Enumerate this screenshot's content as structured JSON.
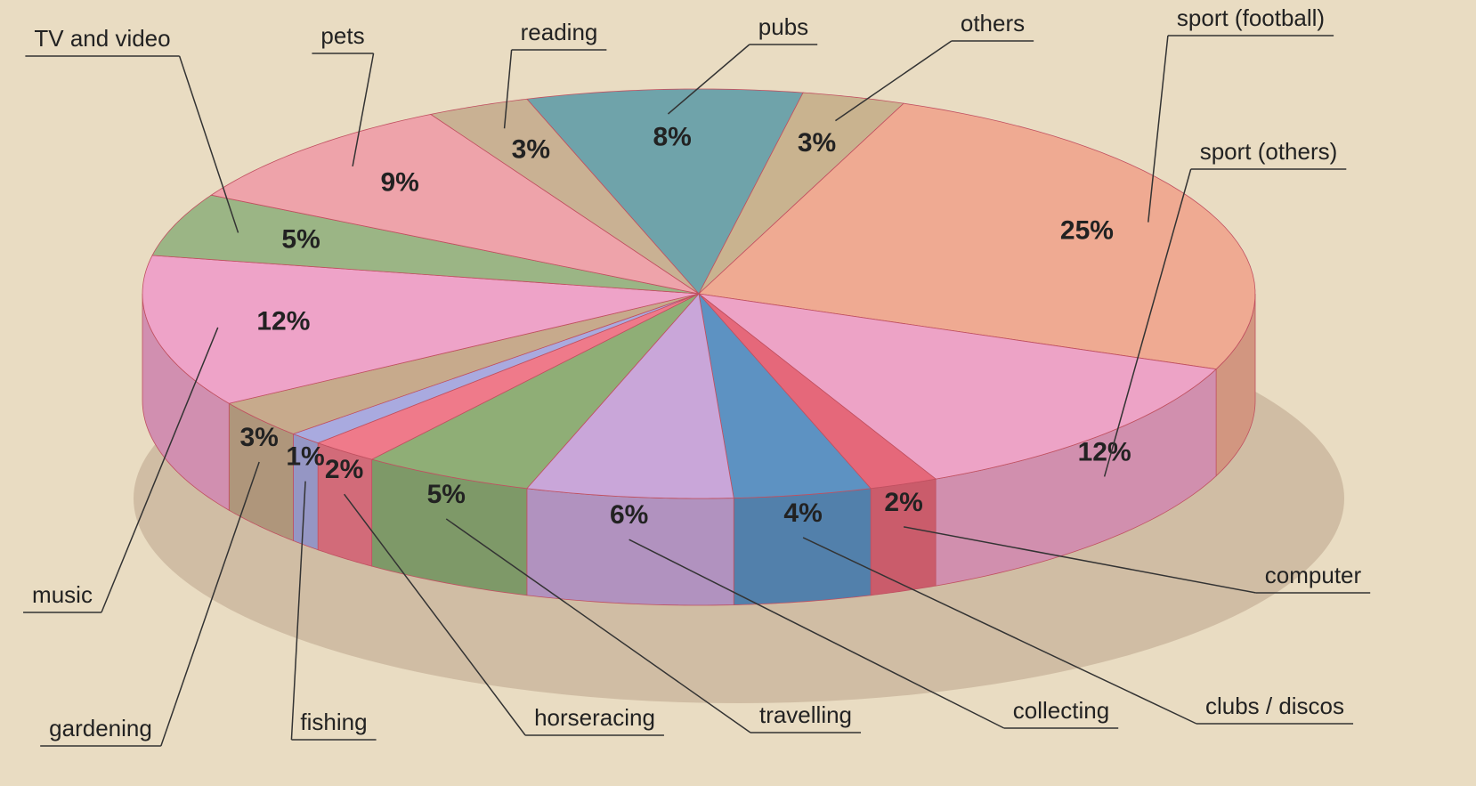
{
  "chart_data": {
    "type": "pie",
    "categories": [
      "pubs",
      "others",
      "sport (football)",
      "sport (others)",
      "computer",
      "clubs / discos",
      "collecting",
      "travelling",
      "horseracing",
      "fishing",
      "gardening",
      "music",
      "TV and video",
      "pets",
      "reading"
    ],
    "values": [
      8,
      3,
      25,
      12,
      2,
      4,
      6,
      5,
      2,
      1,
      3,
      12,
      5,
      9,
      3
    ],
    "value_labels": [
      "8%",
      "3%",
      "25%",
      "12%",
      "2%",
      "4%",
      "6%",
      "5%",
      "2%",
      "1%",
      "3%",
      "12%",
      "5%",
      "9%",
      "3%"
    ],
    "colors": [
      "#6fa3aa",
      "#c9b38f",
      "#efaa92",
      "#eda3c6",
      "#e5687a",
      "#5d92c2",
      "#c9a6d9",
      "#8fae76",
      "#ef7a8a",
      "#a9aadf",
      "#c7aa8c",
      "#eea3c8",
      "#9bb585",
      "#eea3aa",
      "#c9b193"
    ]
  }
}
